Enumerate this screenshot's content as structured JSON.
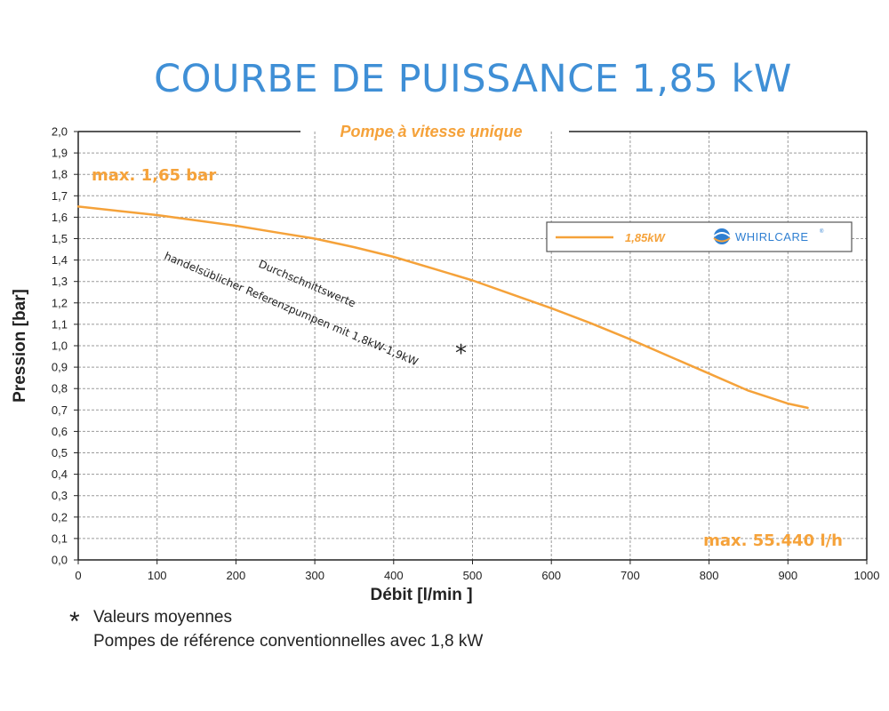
{
  "title": "COURBE DE PUISSANCE 1,85 kW",
  "colors": {
    "title": "#3f8fd6",
    "curve": "#f5a23a",
    "accent_text": "#f5a23a",
    "grid": "#9a9a9a",
    "frame": "#222222"
  },
  "chart_data": {
    "type": "line",
    "subtitle": "Pompe à vitesse unique",
    "xlabel": "Débit [l/min ]",
    "ylabel": "Pression [bar]",
    "xlim": [
      0,
      1000
    ],
    "ylim": [
      0,
      2.0
    ],
    "x_ticks": [
      "0",
      "100",
      "200",
      "300",
      "400",
      "500",
      "600",
      "700",
      "800",
      "900",
      "1000"
    ],
    "y_ticks": [
      "0,0",
      "0,1",
      "0,2",
      "0,3",
      "0,4",
      "0,5",
      "0,6",
      "0,7",
      "0,8",
      "0,9",
      "1,0",
      "1,1",
      "1,2",
      "1,3",
      "1,4",
      "1,5",
      "1,6",
      "1,7",
      "1,8",
      "1,9",
      "2,0"
    ],
    "grid": true,
    "series": [
      {
        "name": "1,85kW",
        "color": "#f5a23a",
        "x": [
          0,
          50,
          100,
          150,
          200,
          250,
          300,
          350,
          400,
          450,
          500,
          550,
          600,
          650,
          700,
          750,
          800,
          850,
          900,
          925
        ],
        "y": [
          1.65,
          1.63,
          1.61,
          1.585,
          1.56,
          1.53,
          1.5,
          1.46,
          1.415,
          1.36,
          1.305,
          1.24,
          1.175,
          1.105,
          1.03,
          0.95,
          0.87,
          0.79,
          0.73,
          0.71
        ]
      }
    ],
    "legend": {
      "position": "right",
      "label": "1,85kW",
      "brand": "WHIRLCARE"
    },
    "annotations": {
      "max_pressure": "max. 1,65 bar",
      "max_flow": "max. 55.440 l/h",
      "reference_line1": "Durchschnittswerte",
      "reference_line2": "handelsüblicher Referenzpumpen mit 1,8kW-1,9kW",
      "reference_marker": "*"
    }
  },
  "footnote": {
    "marker": "*",
    "line1": "Valeurs moyennes",
    "line2": "Pompes de référence conventionnelles avec 1,8 kW"
  }
}
